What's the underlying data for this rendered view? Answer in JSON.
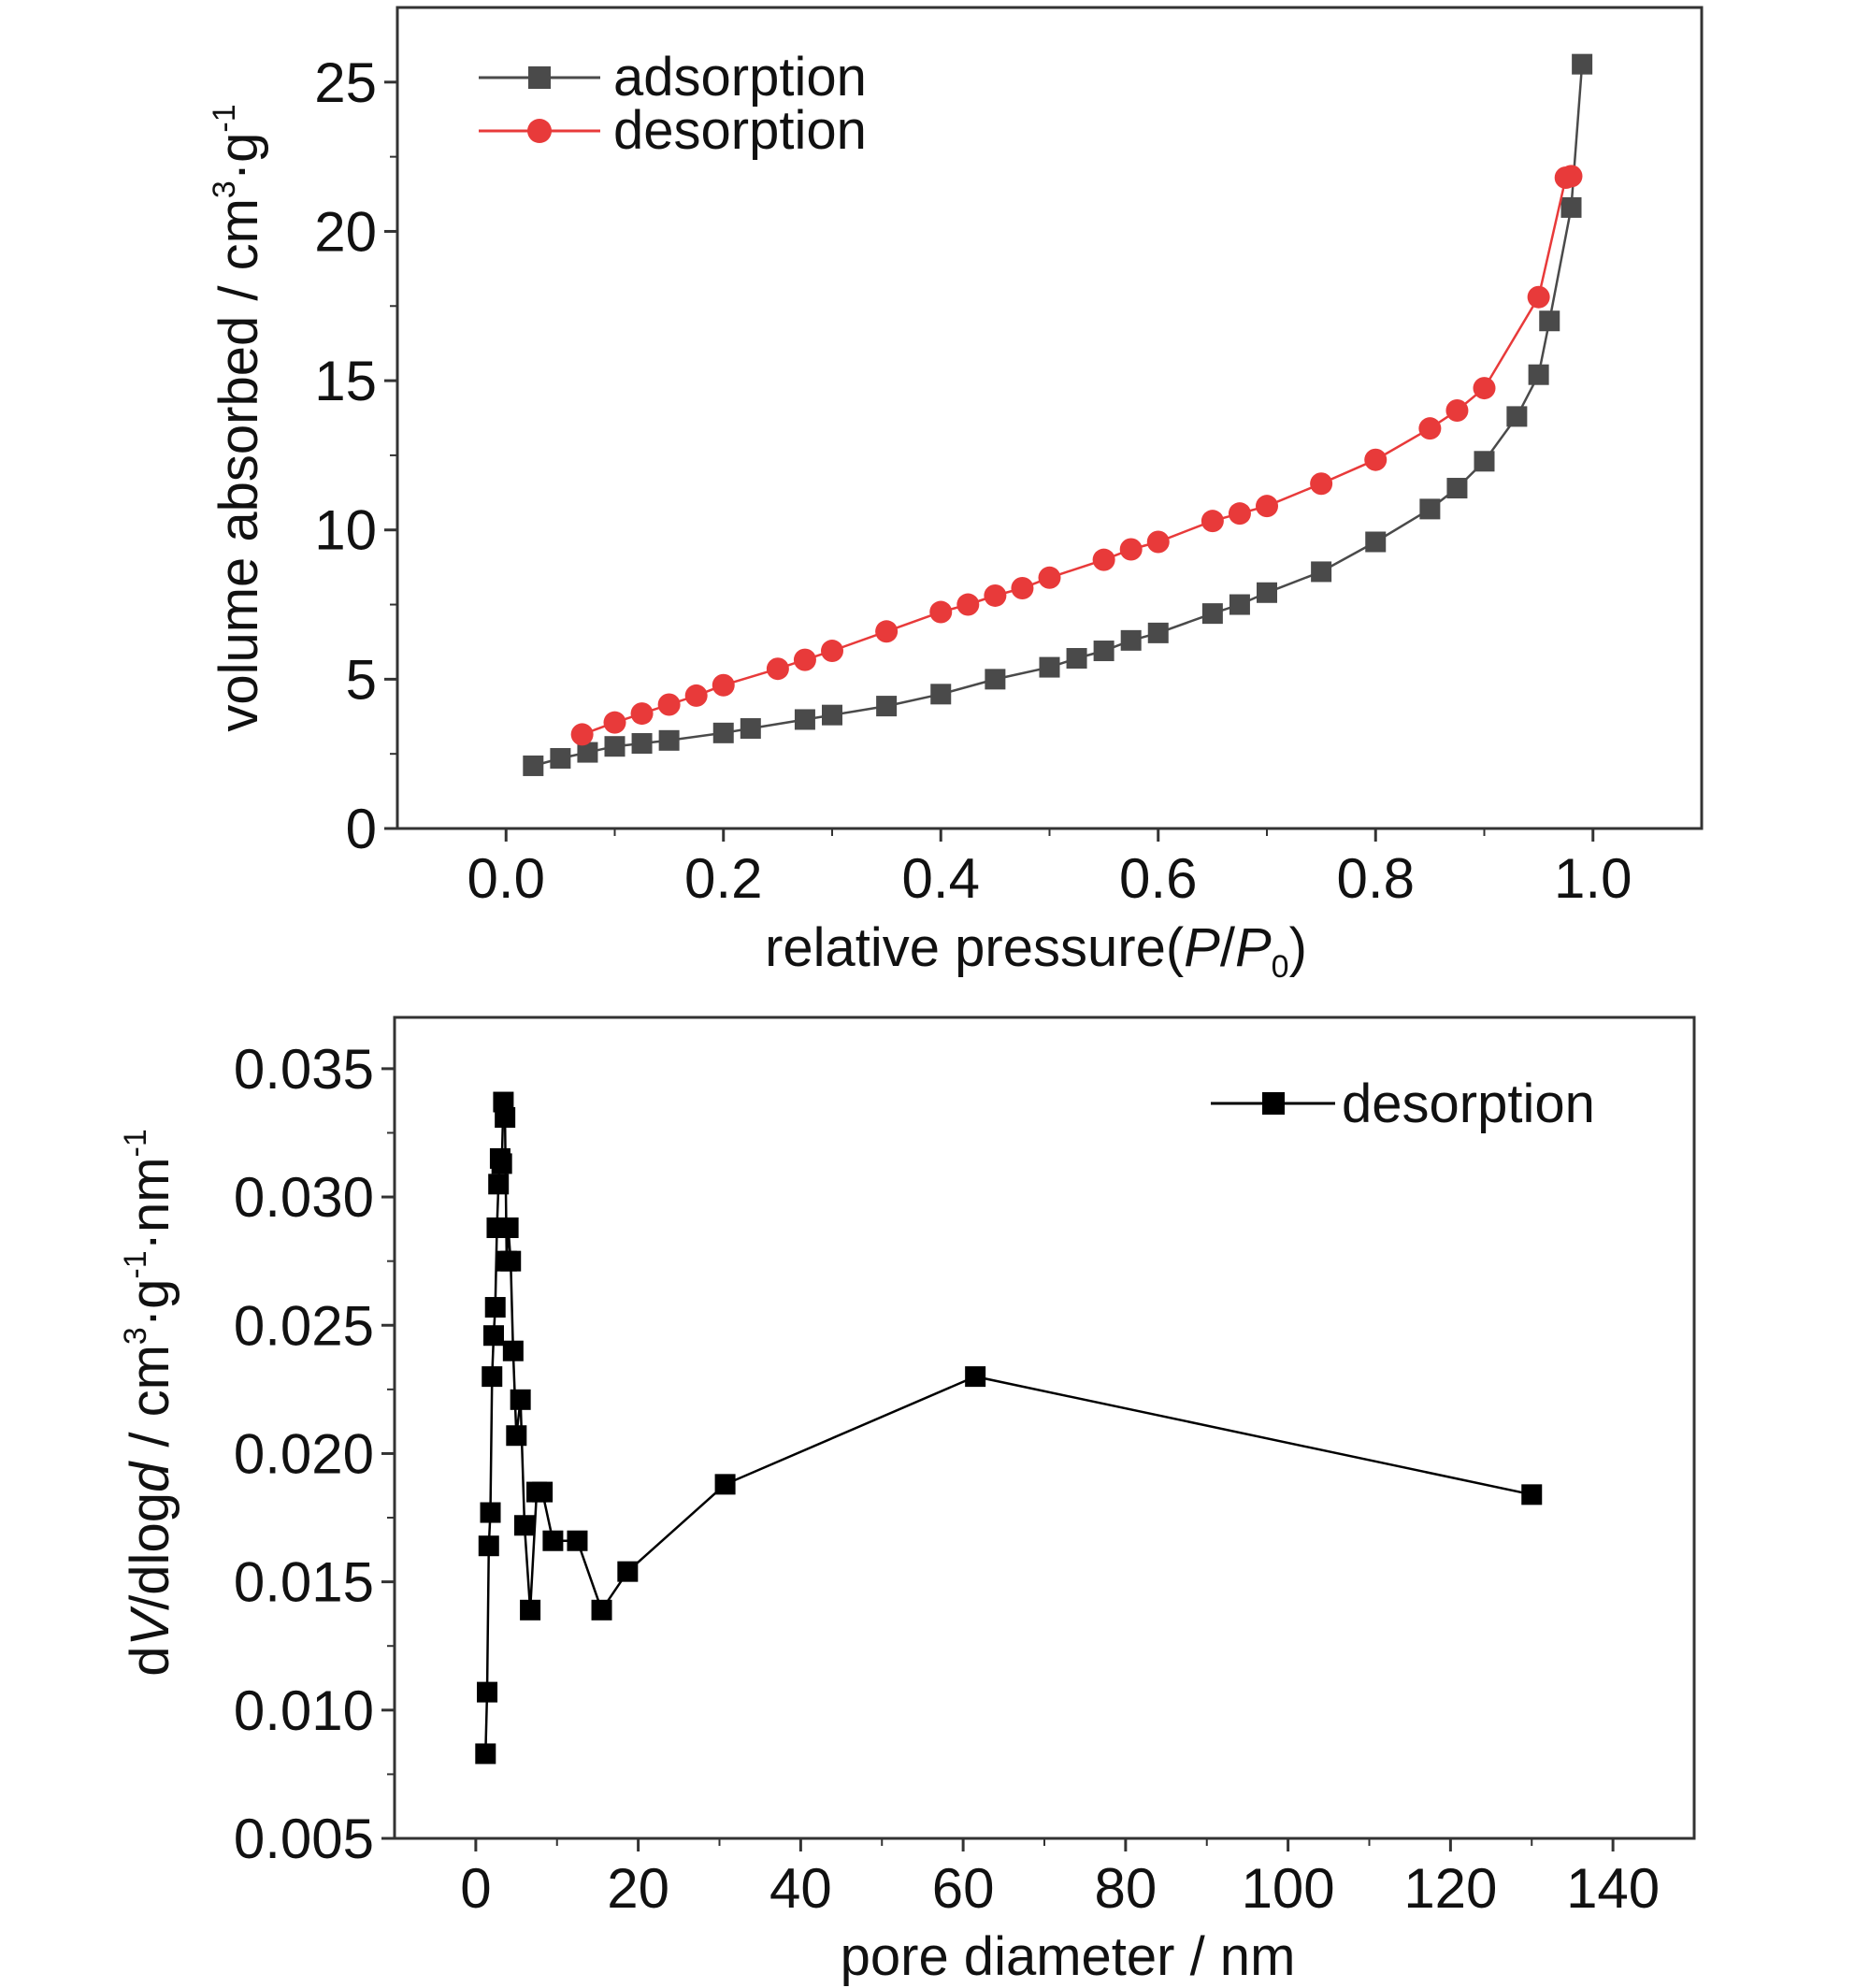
{
  "chart_data": [
    {
      "type": "line",
      "xlabel": "relative pressure(P/P0)",
      "ylabel": "volume absorbed / cm3·g-1",
      "xlim": [
        -0.1,
        1.1
      ],
      "ylim": [
        0,
        27.5
      ],
      "xticks": [
        0.0,
        0.2,
        0.4,
        0.6,
        0.8,
        1.0
      ],
      "xtick_labels": [
        "0.0",
        "0.2",
        "0.4",
        "0.6",
        "0.8",
        "1.0"
      ],
      "yticks": [
        0,
        5,
        10,
        15,
        20,
        25
      ],
      "ytick_labels": [
        "0",
        "5",
        "10",
        "15",
        "20",
        "25"
      ],
      "legend_position": "top-left",
      "series": [
        {
          "name": "adsorption",
          "color": "#4a4a4a",
          "marker": "square",
          "x": [
            0.025,
            0.05,
            0.075,
            0.1,
            0.125,
            0.15,
            0.2,
            0.225,
            0.275,
            0.3,
            0.35,
            0.4,
            0.45,
            0.5,
            0.525,
            0.55,
            0.575,
            0.6,
            0.65,
            0.675,
            0.7,
            0.75,
            0.8,
            0.85,
            0.875,
            0.9,
            0.93,
            0.95,
            0.96,
            0.98,
            0.99
          ],
          "y": [
            2.1,
            2.35,
            2.55,
            2.75,
            2.85,
            2.95,
            3.2,
            3.35,
            3.65,
            3.8,
            4.1,
            4.5,
            5.0,
            5.4,
            5.7,
            5.95,
            6.3,
            6.55,
            7.2,
            7.5,
            7.9,
            8.6,
            9.6,
            10.7,
            11.4,
            12.3,
            13.8,
            15.2,
            17.0,
            20.8,
            25.6
          ]
        },
        {
          "name": "desorption",
          "color": "#e83a3a",
          "marker": "circle",
          "x": [
            0.07,
            0.1,
            0.125,
            0.15,
            0.175,
            0.2,
            0.25,
            0.275,
            0.3,
            0.35,
            0.4,
            0.425,
            0.45,
            0.475,
            0.5,
            0.55,
            0.575,
            0.6,
            0.65,
            0.675,
            0.7,
            0.75,
            0.8,
            0.85,
            0.875,
            0.9,
            0.95,
            0.975,
            0.98
          ],
          "y": [
            3.15,
            3.55,
            3.85,
            4.15,
            4.45,
            4.8,
            5.35,
            5.65,
            5.95,
            6.6,
            7.25,
            7.5,
            7.8,
            8.05,
            8.4,
            9.0,
            9.35,
            9.6,
            10.3,
            10.55,
            10.8,
            11.55,
            12.35,
            13.4,
            14.0,
            14.75,
            17.8,
            21.8,
            21.85
          ]
        }
      ]
    },
    {
      "type": "line",
      "xlabel": "pore diameter / nm",
      "ylabel": "dV/dlogd / cm3·g-1·nm-1",
      "xlim": [
        -10,
        150
      ],
      "ylim": [
        0.005,
        0.037
      ],
      "xticks": [
        0,
        20,
        40,
        60,
        80,
        100,
        120,
        140
      ],
      "xtick_labels": [
        "0",
        "20",
        "40",
        "60",
        "80",
        "100",
        "120",
        "140"
      ],
      "yticks": [
        0.005,
        0.01,
        0.015,
        0.02,
        0.025,
        0.03,
        0.035
      ],
      "ytick_labels": [
        "0.005",
        "0.010",
        "0.015",
        "0.020",
        "0.025",
        "0.030",
        "0.035"
      ],
      "legend_position": "top-right",
      "series": [
        {
          "name": "desorption",
          "color": "#000000",
          "marker": "square",
          "x": [
            1.2,
            1.4,
            1.6,
            1.8,
            2.0,
            2.2,
            2.4,
            2.6,
            2.8,
            3.0,
            3.2,
            3.4,
            3.6,
            3.8,
            4.0,
            4.3,
            4.6,
            5.0,
            5.5,
            6.0,
            6.7,
            7.5,
            8.2,
            9.5,
            12.5,
            15.5,
            18.7,
            30.7,
            61.5,
            130.0
          ],
          "y": [
            0.0083,
            0.0107,
            0.0164,
            0.0177,
            0.023,
            0.0246,
            0.0257,
            0.0288,
            0.0305,
            0.0315,
            0.0313,
            0.0337,
            0.0331,
            0.0275,
            0.0288,
            0.0275,
            0.024,
            0.0207,
            0.0221,
            0.0172,
            0.0139,
            0.0185,
            0.0185,
            0.0166,
            0.0166,
            0.0139,
            0.0154,
            0.0188,
            0.023,
            0.0184
          ]
        }
      ]
    }
  ]
}
